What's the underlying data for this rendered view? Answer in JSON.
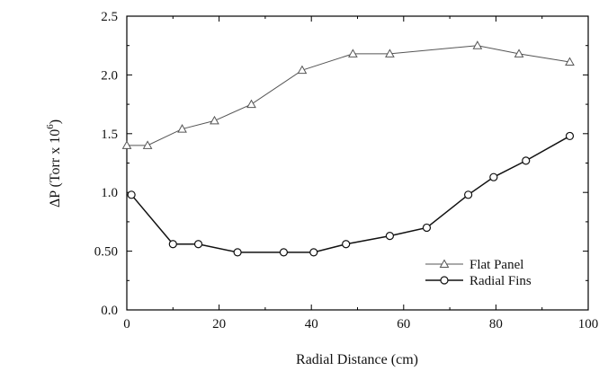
{
  "chart_data": {
    "type": "line",
    "xlabel": "Radial Distance (cm)",
    "ylabel": "ΔP (Torr x 10",
    "ylabel_exponent": "6",
    "ylabel_suffix": ")",
    "xlim": [
      0,
      100
    ],
    "ylim": [
      0,
      2.5
    ],
    "xticks": [
      0,
      20,
      40,
      60,
      80,
      100
    ],
    "xtick_labels": [
      "0",
      "20",
      "40",
      "60",
      "80",
      "100"
    ],
    "yticks": [
      0,
      0.5,
      1.0,
      1.5,
      2.0,
      2.5
    ],
    "ytick_labels": [
      "0.0",
      "0.50",
      "1.0",
      "1.5",
      "2.0",
      "2.5"
    ],
    "grid": false,
    "legend_position": "bottom-right",
    "series": [
      {
        "name": "Flat Panel",
        "marker": "triangle",
        "color": "#555555",
        "x": [
          0,
          4.5,
          12,
          19,
          27,
          38,
          49,
          57,
          76,
          85,
          96
        ],
        "y": [
          1.4,
          1.4,
          1.54,
          1.61,
          1.75,
          2.04,
          2.18,
          2.18,
          2.25,
          2.18,
          2.11
        ]
      },
      {
        "name": "Radial Fins",
        "marker": "circle",
        "color": "#111111",
        "x": [
          1,
          10,
          15.5,
          24,
          34,
          40.5,
          47.5,
          57,
          65,
          74,
          79.5,
          86.5,
          96
        ],
        "y": [
          0.98,
          0.56,
          0.56,
          0.49,
          0.49,
          0.49,
          0.56,
          0.63,
          0.7,
          0.98,
          1.13,
          1.27,
          1.48
        ]
      }
    ]
  }
}
